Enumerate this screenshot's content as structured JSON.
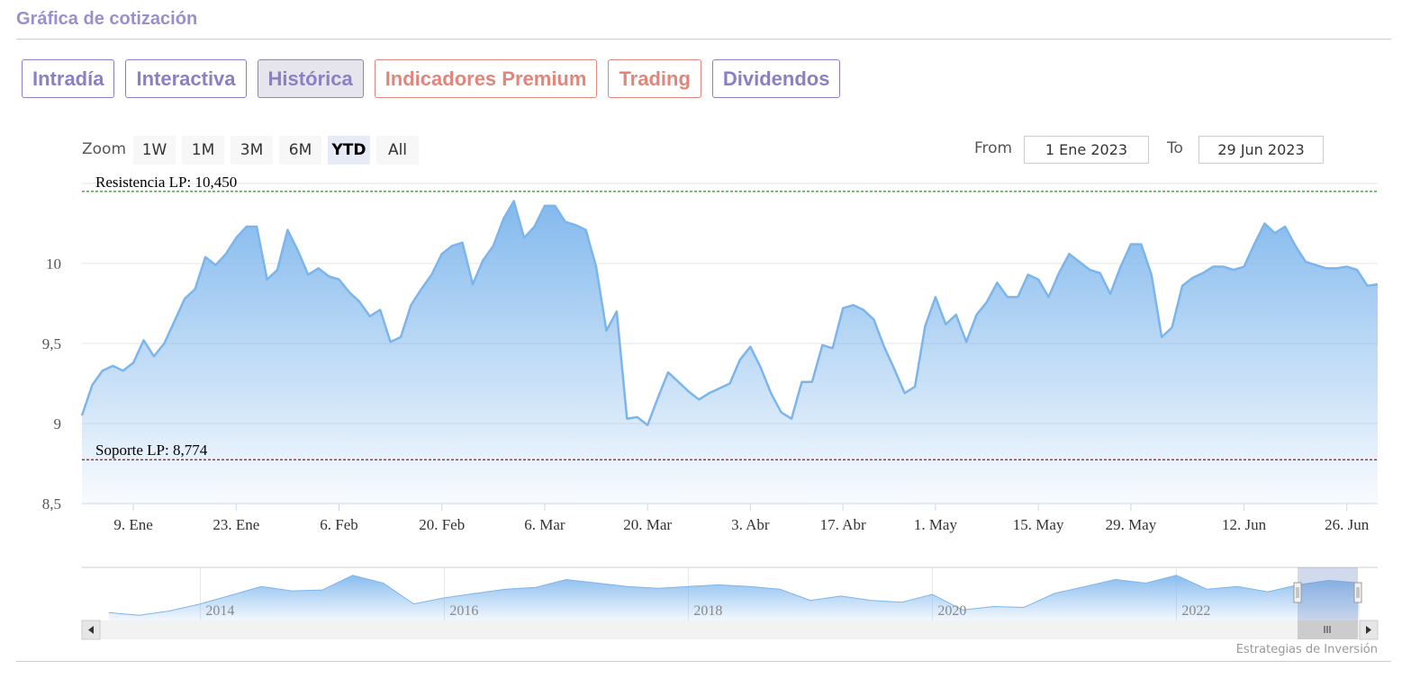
{
  "header": {
    "title": "Gráfica de cotización"
  },
  "tabs": [
    {
      "label": "Intradía",
      "color": "#8a80c4"
    },
    {
      "label": "Interactiva",
      "color": "#8a80c4"
    },
    {
      "label": "Histórica",
      "color": "#8a80c4",
      "selected": true
    },
    {
      "label": "Indicadores Premium",
      "color": "#e0867c"
    },
    {
      "label": "Trading",
      "color": "#e0867c"
    },
    {
      "label": "Dividendos",
      "color": "#8a80c4"
    }
  ],
  "range_selector": {
    "label": "Zoom",
    "buttons": [
      "1W",
      "1M",
      "3M",
      "6M",
      "YTD",
      "All"
    ],
    "selected": 4,
    "from_label": "From",
    "from": "1 Ene 2023",
    "to_label": "To",
    "to": "29 Jun 2023"
  },
  "chart_data": [
    {
      "type": "area",
      "color": "#7cb5ec",
      "grid": true,
      "categories": [
        null,
        null,
        null,
        null,
        null,
        "9. Ene",
        null,
        null,
        null,
        null,
        null,
        null,
        null,
        null,
        null,
        "23. Ene",
        null,
        null,
        null,
        null,
        null,
        null,
        null,
        null,
        null,
        "6. Feb",
        null,
        null,
        null,
        null,
        null,
        null,
        null,
        null,
        null,
        "20. Feb",
        null,
        null,
        null,
        null,
        null,
        null,
        null,
        null,
        null,
        "6. Mar",
        null,
        null,
        null,
        null,
        null,
        null,
        null,
        null,
        null,
        "20. Mar",
        null,
        null,
        null,
        null,
        null,
        null,
        null,
        null,
        null,
        "3. Abr",
        null,
        null,
        null,
        null,
        null,
        null,
        null,
        null,
        "17. Abr",
        null,
        null,
        null,
        null,
        null,
        null,
        null,
        null,
        "1. May",
        null,
        null,
        null,
        null,
        null,
        null,
        null,
        null,
        null,
        "15. May",
        null,
        null,
        null,
        null,
        null,
        null,
        null,
        null,
        "29. May",
        null,
        null,
        null,
        null,
        null,
        null,
        null,
        null,
        null,
        null,
        "12. Jun",
        null,
        null,
        null,
        null,
        null,
        null,
        null,
        null,
        null,
        "26. Jun",
        null,
        null,
        null
      ],
      "values": [
        9.05,
        9.24,
        9.33,
        9.36,
        9.33,
        9.38,
        9.52,
        9.42,
        9.5,
        9.64,
        9.78,
        9.84,
        10.04,
        9.99,
        10.06,
        10.16,
        10.23,
        10.23,
        9.9,
        9.96,
        10.21,
        10.08,
        9.93,
        9.97,
        9.92,
        9.9,
        9.82,
        9.76,
        9.67,
        9.71,
        9.51,
        9.54,
        9.74,
        9.84,
        9.93,
        10.06,
        10.11,
        10.13,
        9.87,
        10.02,
        10.11,
        10.28,
        10.39,
        10.16,
        10.23,
        10.36,
        10.36,
        10.26,
        10.24,
        10.21,
        9.98,
        9.58,
        9.7,
        9.03,
        9.04,
        8.99,
        9.16,
        9.32,
        9.26,
        9.2,
        9.15,
        9.19,
        9.22,
        9.25,
        9.4,
        9.48,
        9.35,
        9.19,
        9.07,
        9.03,
        9.26,
        9.26,
        9.49,
        9.47,
        9.72,
        9.74,
        9.71,
        9.65,
        9.48,
        9.34,
        9.19,
        9.23,
        9.61,
        9.79,
        9.62,
        9.68,
        9.51,
        9.68,
        9.76,
        9.88,
        9.79,
        9.79,
        9.93,
        9.9,
        9.79,
        9.94,
        10.06,
        10.01,
        9.96,
        9.94,
        9.81,
        9.98,
        10.12,
        10.12,
        9.93,
        9.54,
        9.6,
        9.86,
        9.91,
        9.94,
        9.98,
        9.98,
        9.96,
        9.98,
        10.12,
        10.25,
        10.19,
        10.23,
        10.11,
        10.01,
        9.99,
        9.97,
        9.97,
        9.98,
        9.96,
        9.86,
        9.87
      ],
      "ylim": [
        8.5,
        10.5
      ],
      "yticks": [
        {
          "value": 8.5,
          "label": "8,5"
        },
        9,
        {
          "value": 9.5,
          "label": "9,5"
        },
        10
      ],
      "plot_lines": [
        {
          "value": 10.45,
          "label": "Resistencia LP: 10,450",
          "color": "#2e8b2e"
        },
        {
          "value": 8.774,
          "label": "Soporte LP: 8,774",
          "color": "#8b1a1a"
        }
      ]
    },
    {
      "type": "area",
      "color": "#7cb5ec",
      "grid": true,
      "x": [
        2013.25,
        2013.5,
        2013.75,
        2014,
        2014.25,
        2014.5,
        2014.75,
        2015,
        2015.25,
        2015.5,
        2015.75,
        2016,
        2016.25,
        2016.5,
        2016.75,
        2017,
        2017.25,
        2017.5,
        2017.75,
        2018,
        2018.25,
        2018.5,
        2018.75,
        2019,
        2019.25,
        2019.5,
        2019.75,
        2020,
        2020.25,
        2020.5,
        2020.75,
        2021,
        2021.25,
        2021.5,
        2021.75,
        2022,
        2022.25,
        2022.5,
        2022.75,
        2023,
        2023.25,
        2023.5
      ],
      "values": [
        6.9,
        6.6,
        7.1,
        7.9,
        8.9,
        9.9,
        9.4,
        9.5,
        11.2,
        10.3,
        7.9,
        8.6,
        9.1,
        9.6,
        9.8,
        10.7,
        10.3,
        9.9,
        9.7,
        9.9,
        10.1,
        9.9,
        9.6,
        8.3,
        8.8,
        8.3,
        8.1,
        9.0,
        7.2,
        7.6,
        7.5,
        9.1,
        9.9,
        10.7,
        10.3,
        11.2,
        9.6,
        9.9,
        9.3,
        10.1,
        10.6,
        10.3
      ],
      "xlim": [
        2013.03,
        2023.65
      ],
      "xticks": [
        2014,
        2016,
        2018,
        2020,
        2022
      ],
      "ylim": [
        6,
        12
      ]
    }
  ],
  "footer": {
    "credit": "Estrategias de Inversión"
  }
}
